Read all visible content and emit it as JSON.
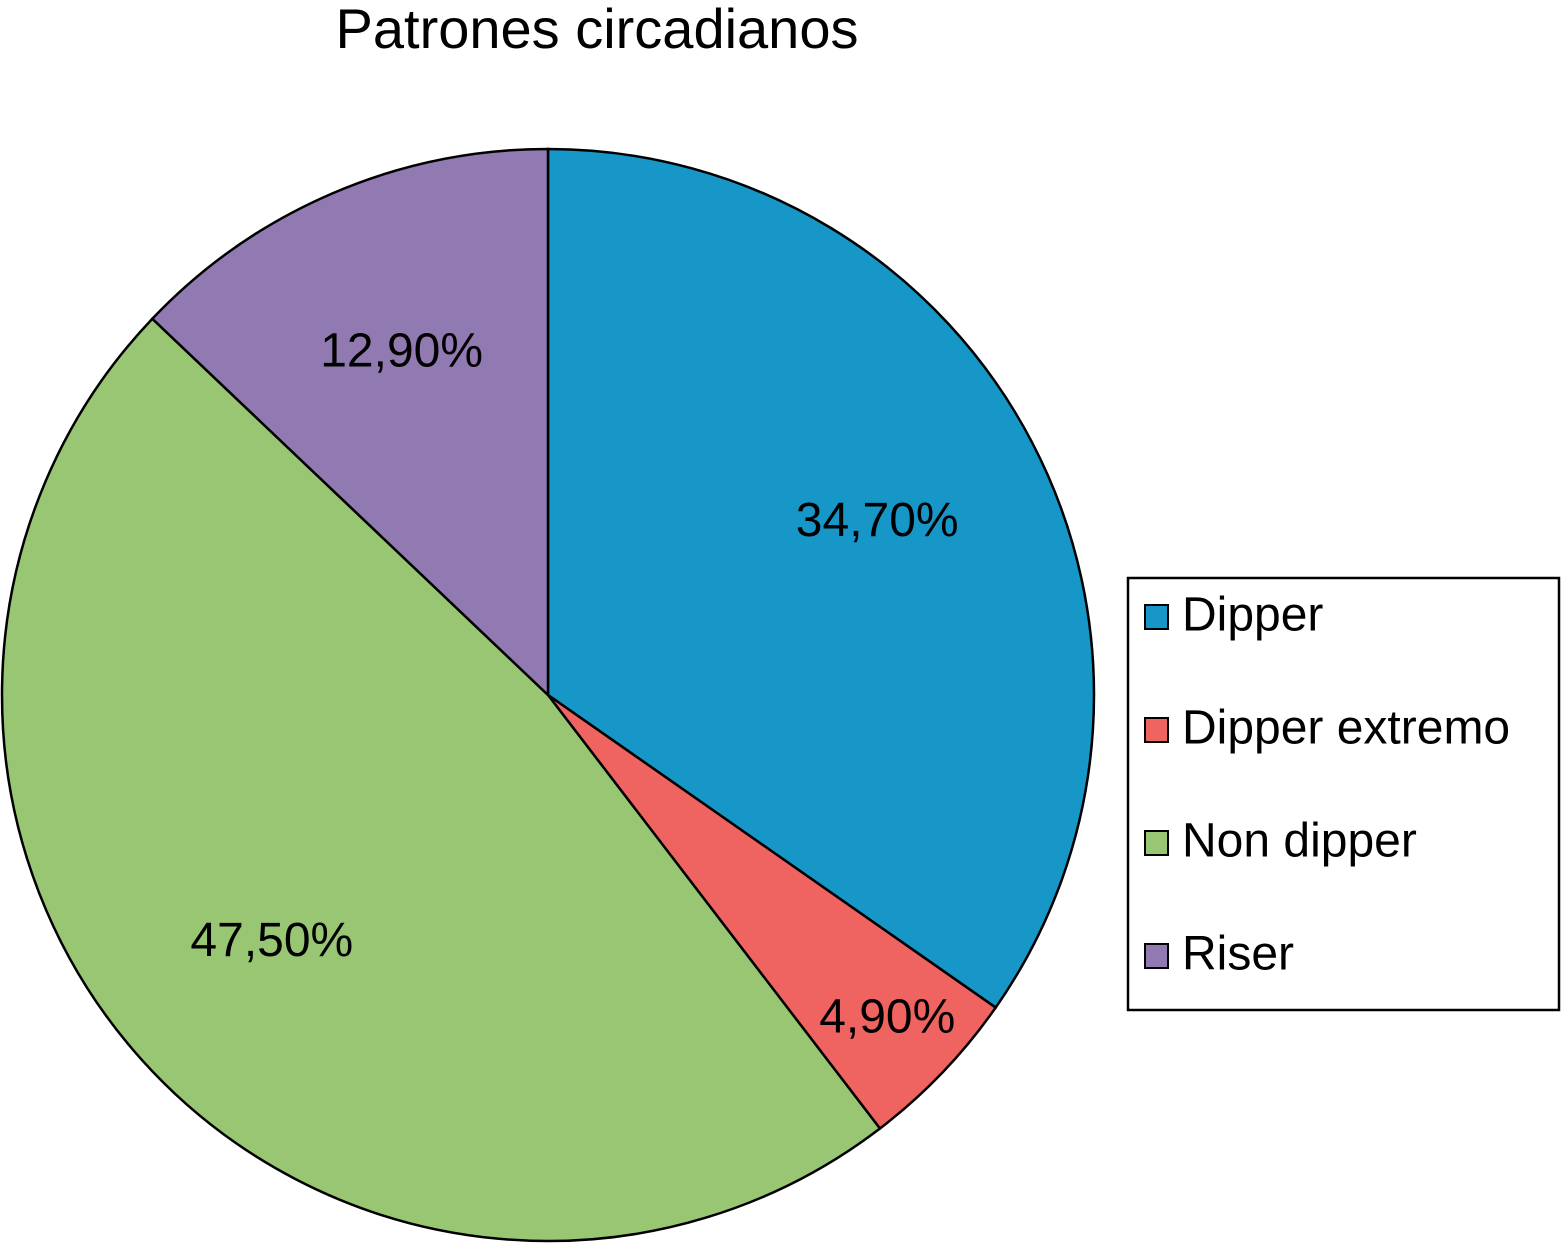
{
  "chart_data": {
    "type": "pie",
    "title": "Patrones circadianos",
    "categories": [
      "Dipper",
      "Dipper extremo",
      "Non dipper",
      "Riser"
    ],
    "values": [
      34.7,
      4.9,
      47.5,
      12.9
    ],
    "value_labels": [
      "34,70%",
      "4,90%",
      "47,50%",
      "12,90%"
    ],
    "colors": [
      "#1796c8",
      "#ef6461",
      "#98c673",
      "#9179b1"
    ],
    "legend": "right"
  }
}
